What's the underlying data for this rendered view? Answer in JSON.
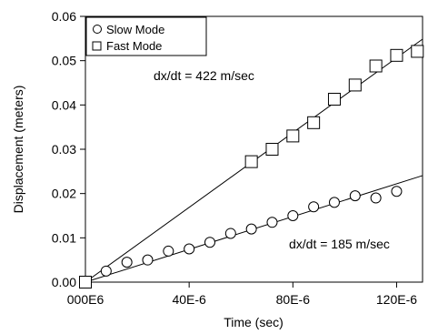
{
  "chart_data": {
    "type": "scatter",
    "xlabel": "Time (sec)",
    "ylabel": "Displacement (meters)",
    "xlim": [
      0,
      0.00013
    ],
    "ylim": [
      0,
      0.06
    ],
    "x_ticks": [
      {
        "value": 0,
        "label": "000E6"
      },
      {
        "value": 4e-05,
        "label": "40E-6"
      },
      {
        "value": 8e-05,
        "label": "80E-6"
      },
      {
        "value": 0.00012,
        "label": "120E-6"
      }
    ],
    "y_ticks": [
      {
        "value": 0,
        "label": "0.00"
      },
      {
        "value": 0.01,
        "label": "0.01"
      },
      {
        "value": 0.02,
        "label": "0.02"
      },
      {
        "value": 0.03,
        "label": "0.03"
      },
      {
        "value": 0.04,
        "label": "0.04"
      },
      {
        "value": 0.05,
        "label": "0.05"
      },
      {
        "value": 0.06,
        "label": "0.06"
      }
    ],
    "legend_position": "top-left",
    "series": [
      {
        "name": "Slow Mode",
        "marker": "circle",
        "x": [
          0,
          8e-06,
          1.6e-05,
          2.4e-05,
          3.2e-05,
          4e-05,
          4.8e-05,
          5.6e-05,
          6.4e-05,
          7.2e-05,
          8e-05,
          8.8e-05,
          9.6e-05,
          0.000104,
          0.000112,
          0.00012
        ],
        "y": [
          0,
          0.0025,
          0.0045,
          0.005,
          0.007,
          0.0075,
          0.009,
          0.011,
          0.012,
          0.0135,
          0.015,
          0.017,
          0.018,
          0.0195,
          0.019,
          0.0205
        ],
        "fit_slope": 185,
        "fit_label": "dx/dt = 185 m/sec"
      },
      {
        "name": "Fast Mode",
        "marker": "square",
        "x": [
          0,
          6.4e-05,
          7.2e-05,
          8e-05,
          8.8e-05,
          9.6e-05,
          0.000104,
          0.000112,
          0.00012,
          0.000128
        ],
        "y": [
          0,
          0.0272,
          0.03,
          0.033,
          0.036,
          0.0413,
          0.0445,
          0.0488,
          0.0512,
          0.0521
        ],
        "fit_slope": 422,
        "fit_label": "dx/dt = 422 m/sec"
      }
    ]
  }
}
